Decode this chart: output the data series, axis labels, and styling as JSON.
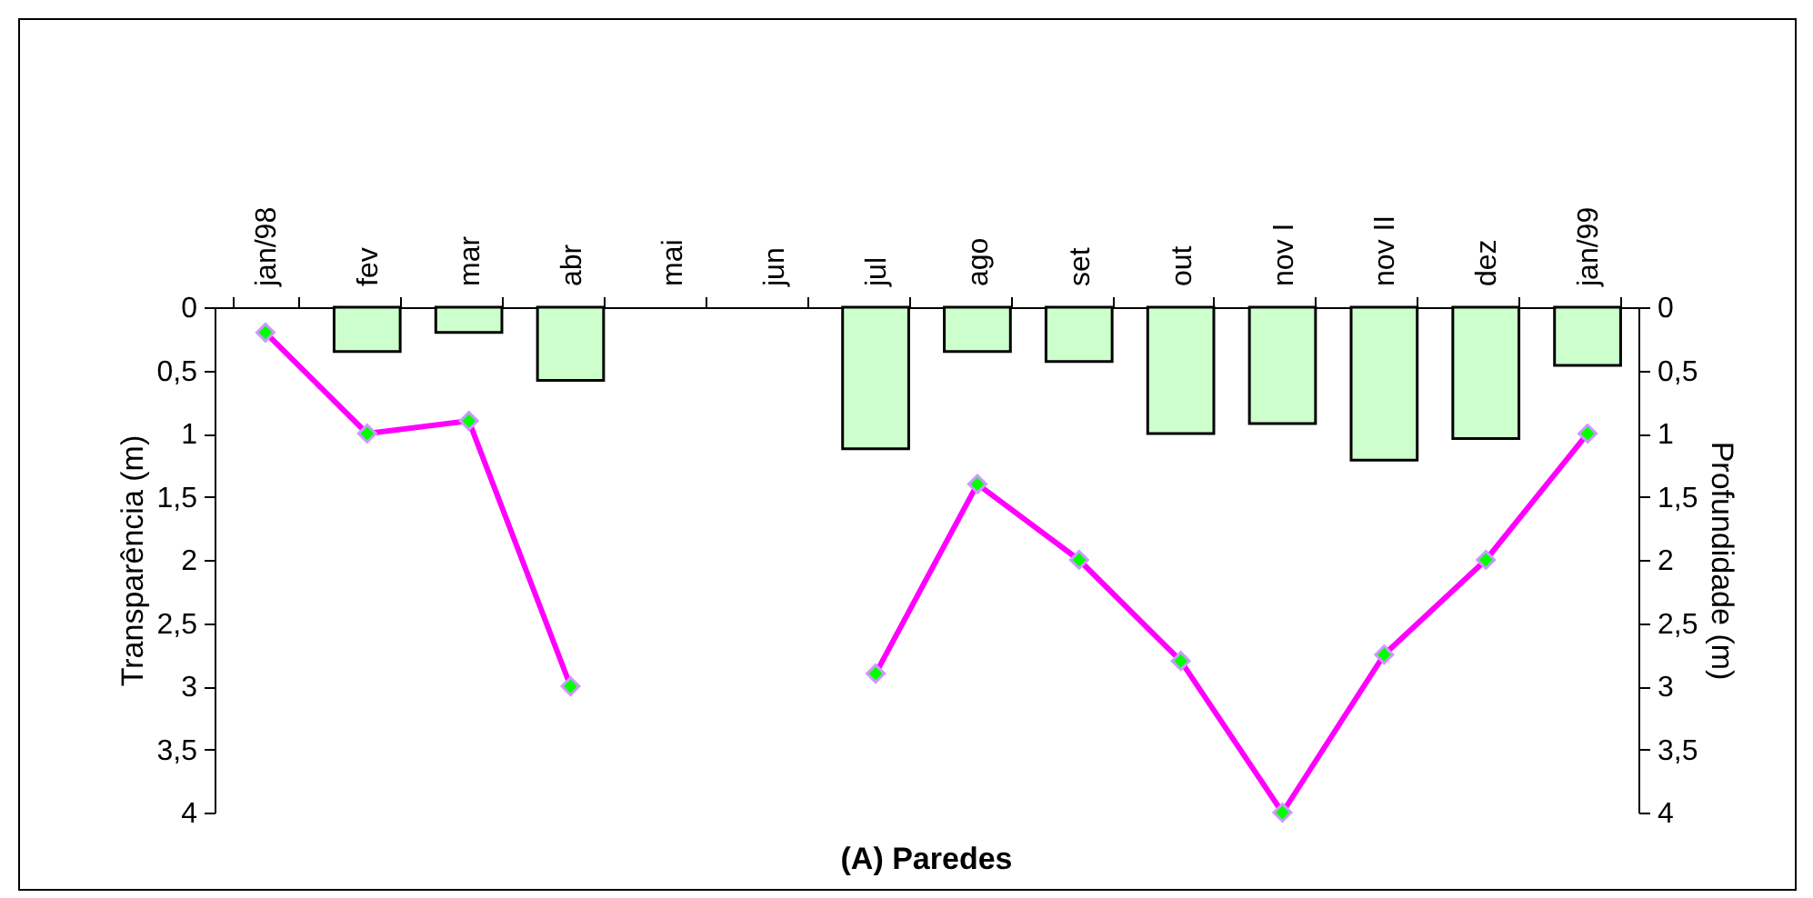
{
  "chart_data": {
    "type": "bar",
    "title": "(A)   Paredes",
    "ylabel": "Transparência (m)",
    "y2label": "Profundidade (m)",
    "categories": [
      "jan/98",
      "fev",
      "mar",
      "abr",
      "mai",
      "jun",
      "jul",
      "ago",
      "set",
      "out",
      "nov I",
      "nov II",
      "dez",
      "jan/99"
    ],
    "series": [
      {
        "color": "#ccffcc",
        "values": [
          null,
          0.35,
          0.2,
          0.58,
          null,
          null,
          1.12,
          0.35,
          0.43,
          1.0,
          0.92,
          1.21,
          1.04,
          0.46
        ]
      },
      {
        "type": "line",
        "axis": "y2",
        "color": "#ff00ff",
        "marker": "diamond",
        "values": [
          0.2,
          1.0,
          0.9,
          3.0,
          null,
          null,
          2.9,
          1.4,
          2.0,
          2.8,
          4.0,
          2.75,
          2.0,
          1.0
        ]
      }
    ],
    "ylim": [
      4,
      0
    ],
    "yticks": [
      0,
      {
        "value": 0.5,
        "label": "0,5"
      },
      1,
      {
        "value": 1.5,
        "label": "1,5"
      },
      2,
      {
        "value": 2.5,
        "label": "2,5"
      },
      3,
      {
        "value": 3.5,
        "label": "3,5"
      },
      4
    ],
    "y2lim": [
      4,
      0
    ],
    "y2ticks": [
      0,
      {
        "value": 0.5,
        "label": "0,5"
      },
      1,
      {
        "value": 1.5,
        "label": "1,5"
      },
      2,
      {
        "value": 2.5,
        "label": "2,5"
      },
      3,
      {
        "value": 3.5,
        "label": "3,5"
      },
      4
    ],
    "grid": false
  }
}
